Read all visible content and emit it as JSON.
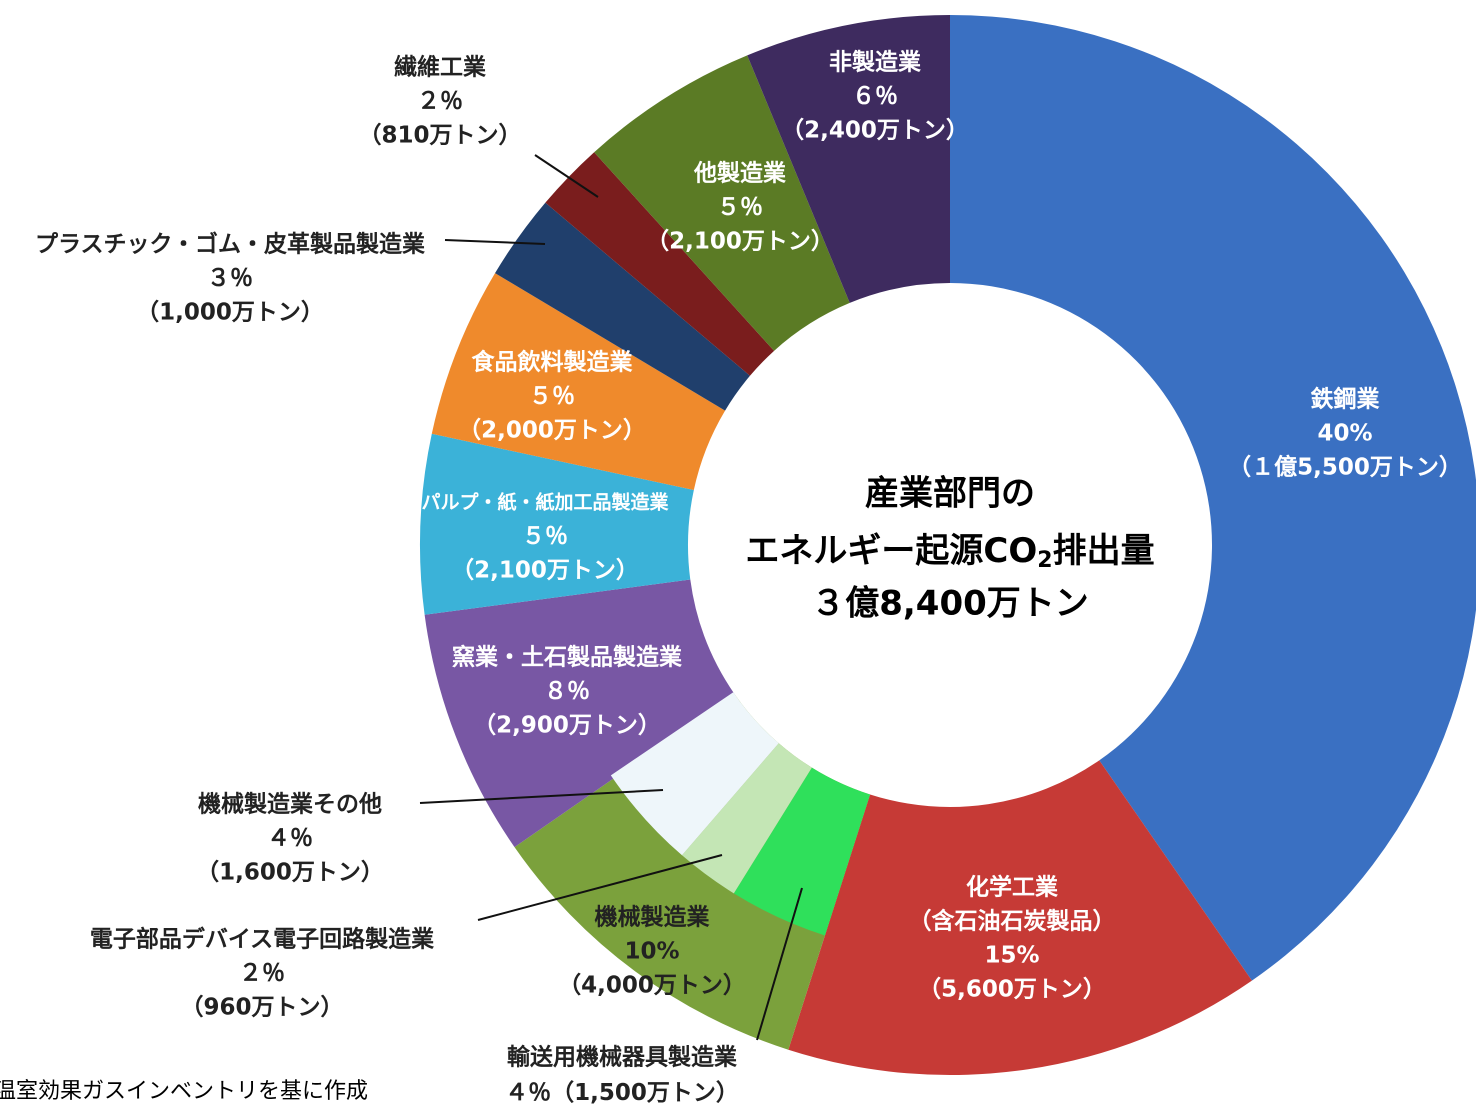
{
  "chart_data": {
    "type": "donut",
    "center_title": [
      "産業部門の",
      "エネルギー起源CO",
      "2",
      "排出量"
    ],
    "total_label": "３億8,400万トン",
    "categories": [
      [
        "鉄鋼業"
      ],
      [
        "化学工業",
        "（含石油石炭製品）"
      ],
      [
        "機械製造業"
      ],
      [
        "窯業・土石製品製造業"
      ],
      [
        "パルプ・紙・紙加工品製造業"
      ],
      [
        "食品飲料製造業"
      ],
      [
        "プラスチック・ゴム・皮革製品製造業"
      ],
      [
        "繊維工業"
      ],
      [
        "他製造業"
      ],
      [
        "非製造業"
      ]
    ],
    "values": [
      15500,
      5600,
      4000,
      2900,
      2100,
      2000,
      1000,
      810,
      2100,
      2400
    ],
    "value_labels": [
      "（１億5,500万トン）",
      "（5,600万トン）",
      "（4,000万トン）",
      "（2,900万トン）",
      "（2,100万トン）",
      "（2,000万トン）",
      "（1,000万トン）",
      "（810万トン）",
      "（2,100万トン）",
      "（2,400万トン）"
    ],
    "percent_labels": [
      "40%",
      "15%",
      "10%",
      "８％",
      "５％",
      "５％",
      "３％",
      "２％",
      "５％",
      "６％"
    ],
    "colors": [
      "#3a70c2",
      "#c63a36",
      "#7ba13c",
      "#7857a4",
      "#3bb2d8",
      "#ef8a2c",
      "#203f6c",
      "#7a1d1d",
      "#5b7b25",
      "#3e2b5f"
    ],
    "breakdown": {
      "categories": [
        "輸送用機械器具製造業",
        "電子部品デバイス電子回路製造業",
        "機械製造業その他"
      ],
      "values": [
        1500,
        960,
        1600
      ],
      "value_labels": [
        "（1,500万トン）",
        "（960万トン）",
        "（1,600万トン）"
      ],
      "percent_labels": [
        "４％",
        "２％",
        "４％"
      ],
      "colors": [
        "#2fe05b",
        "#c4e6b5",
        "#eef6fa"
      ]
    },
    "source": "温室効果ガスインベントリを基に作成"
  }
}
